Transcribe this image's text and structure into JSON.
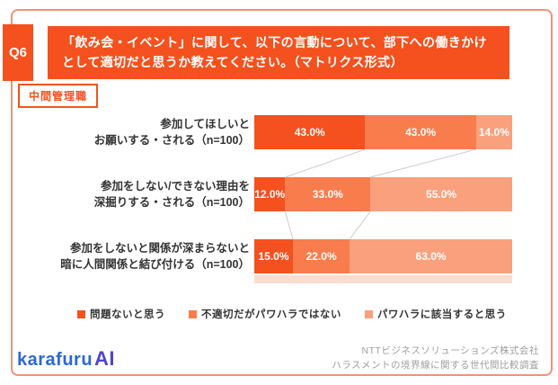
{
  "colors": {
    "segment1": "#f4511e",
    "segment2": "#f97c4d",
    "segment3": "#faa07c",
    "banner_bg": "#f4511e",
    "card_border": "#ef9377",
    "connector": "#cccccc",
    "label_text": "#333333",
    "footer_text": "#9e9e9e",
    "logo_blue": "#2d68d6"
  },
  "header": {
    "q_label": "Q6",
    "title_line1": "「飲み会・イベント」に関して、以下の言動について、部下への働きかけ",
    "title_line2": "として適切だと思うか教えてください。（マトリクス形式）",
    "group_badge": "中間管理職"
  },
  "rows": [
    {
      "label_line1": "参加してほしいと",
      "label_line2": "お願いする・される（n=100）",
      "segments": [
        {
          "value": 43,
          "label": "43.0%"
        },
        {
          "value": 43,
          "label": "43.0%"
        },
        {
          "value": 14,
          "label": "14.0%"
        }
      ]
    },
    {
      "label_line1": "参加をしない/できない理由を",
      "label_line2": "深掘りする・される（n=100）",
      "segments": [
        {
          "value": 12,
          "label": "12.0%"
        },
        {
          "value": 33,
          "label": "33.0%"
        },
        {
          "value": 55,
          "label": "55.0%"
        }
      ]
    },
    {
      "label_line1": "参加をしないと関係が深まらないと",
      "label_line2": "暗に人間関係と結び付ける（n=100）",
      "segments": [
        {
          "value": 15,
          "label": "15.0%"
        },
        {
          "value": 22,
          "label": "22.0%"
        },
        {
          "value": 63,
          "label": "63.0%"
        }
      ]
    }
  ],
  "legend": {
    "items": [
      {
        "label": "問題ないと思う"
      },
      {
        "label": "不適切だがパワハラではない"
      },
      {
        "label": "パワハラに該当すると思う"
      }
    ]
  },
  "footer": {
    "logo_text": "karafuru",
    "logo_suffix": "AI",
    "source_line1": "NTTビジネスソリューションズ株式会社",
    "source_line2": "ハラスメントの境界線に関する世代間比較調査"
  },
  "chart_data": {
    "type": "bar",
    "orientation": "horizontal",
    "stacked": true,
    "title": "「飲み会・イベント」に関して、以下の言動について、部下への働きかけとして適切だと思うか教えてください。（マトリクス形式）",
    "subtitle": "中間管理職",
    "categories": [
      "参加してほしいとお願いする・される（n=100）",
      "参加をしない/できない理由を深掘りする・される（n=100）",
      "参加をしないと関係が深まらないと暗に人間関係と結び付ける（n=100）"
    ],
    "series": [
      {
        "name": "問題ないと思う",
        "values": [
          43.0,
          12.0,
          15.0
        ],
        "color": "#f4511e"
      },
      {
        "name": "不適切だがパワハラではない",
        "values": [
          43.0,
          33.0,
          22.0
        ],
        "color": "#f97c4d"
      },
      {
        "name": "パワハラに該当すると思う",
        "values": [
          14.0,
          55.0,
          63.0
        ],
        "color": "#faa07c"
      }
    ],
    "value_format": "percent_one_decimal",
    "xlim": [
      0,
      100
    ],
    "grid": false,
    "legend_position": "bottom",
    "data_labels": true
  }
}
